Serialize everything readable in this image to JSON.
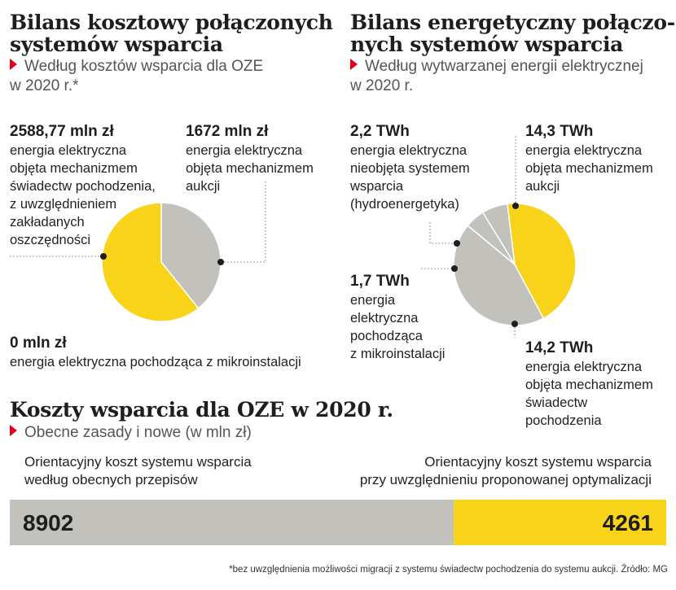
{
  "left_panel": {
    "title_line1": "Bilans kosztowy połączonych",
    "title_line2": "systemów wsparcia",
    "subtitle_line1": "Według kosztów wsparcia dla OZE",
    "subtitle_line2": "w 2020 r.*",
    "annotations": {
      "certificates": {
        "value": "2588,77 mln zł",
        "text": "energia elektryczna\nobjęta mechanizmem\nświadectw pochodzenia,\nz uwzględnieniem\nzakładanych\noszczędności"
      },
      "auctions": {
        "value": "1672 mln zł",
        "text": "energia elektryczna\nobjęta mechanizmem\naukcji"
      },
      "micro": {
        "value": "0 mln zł",
        "text": "energia elektryczna pochodząca z mikroinstalacji"
      }
    }
  },
  "right_panel": {
    "title_line1": "Bilans energetyczny połączo-",
    "title_line2": "nych systemów wsparcia",
    "subtitle_line1": "Według wytwarzanej energii elektrycznej",
    "subtitle_line2": "w 2020 r.",
    "annotations": {
      "hydro": {
        "value": "2,2 TWh",
        "text": "energia elektryczna\nnieobjęta systemem\nwsparcia\n(hydroenergetyka)"
      },
      "auctions": {
        "value": "14,3 TWh",
        "text": "energia elektryczna\nobjęta mechanizmem\naukcji"
      },
      "micro": {
        "value": "1,7 TWh",
        "text": "energia\nelektryczna\npochodząca\nz mikroinstalacji"
      },
      "certificates": {
        "value": "14,2 TWh",
        "text": "energia elektryczna\nobjęta mechanizmem\nświadectw\npochodzenia"
      }
    }
  },
  "bottom_panel": {
    "title": "Koszty wsparcia dla OZE w 2020 r.",
    "subtitle": "Obecne zasady i nowe (w mln zł)",
    "label_left": "Orientacyjny koszt systemu wsparcia\nwedług obecnych przepisów",
    "label_right": "Orientacyjny koszt systemu wsparcia\nprzy uwzględnieniu proponowanej optymalizacji"
  },
  "footnote": "*bez uwzględnienia możliwości migracji z systemu świadectw pochodzenia do systemu aukcji. Źródło: MG",
  "colors": {
    "yellow": "#f9d21a",
    "gray": "#c3c1bc",
    "line": "#9a9a9a",
    "accent_red": "#e3001b"
  },
  "chart_data": [
    {
      "type": "pie",
      "title": "Bilans kosztowy połączonych systemów wsparcia",
      "unit": "mln zł",
      "slices": [
        {
          "name": "energia elektryczna objęta mechanizmem aukcji",
          "value": 1672,
          "color": "#c3c1bc"
        },
        {
          "name": "energia elektryczna objęta mechanizmem świadectw pochodzenia, z uwzględnieniem zakładanych oszczędności",
          "value": 2588.77,
          "color": "#f9d21a"
        },
        {
          "name": "energia elektryczna pochodząca z mikroinstalacji",
          "value": 0,
          "color": "#c3c1bc"
        }
      ]
    },
    {
      "type": "pie",
      "title": "Bilans energetyczny połączonych systemów wsparcia",
      "unit": "TWh",
      "slices": [
        {
          "name": "energia elektryczna objęta mechanizmem aukcji",
          "value": 14.3,
          "color": "#f9d21a"
        },
        {
          "name": "energia elektryczna objęta mechanizmem świadectw pochodzenia",
          "value": 14.2,
          "color": "#c3c1bc"
        },
        {
          "name": "energia elektryczna pochodząca z mikroinstalacji",
          "value": 1.7,
          "color": "#c3c1bc"
        },
        {
          "name": "energia elektryczna nieobjęta systemem wsparcia (hydroenergetyka)",
          "value": 2.2,
          "color": "#c3c1bc"
        }
      ]
    },
    {
      "type": "bar",
      "title": "Koszty wsparcia dla OZE w 2020 r.",
      "unit": "mln zł",
      "categories": [
        "Orientacyjny koszt systemu wsparcia według obecnych przepisów",
        "Orientacyjny koszt systemu wsparcia przy uwzględnieniu proponowanej optymalizacji"
      ],
      "values": [
        8902,
        4261
      ],
      "colors": [
        "#c3c1bc",
        "#f9d21a"
      ],
      "value_labels": [
        "8902",
        "4261"
      ]
    }
  ]
}
